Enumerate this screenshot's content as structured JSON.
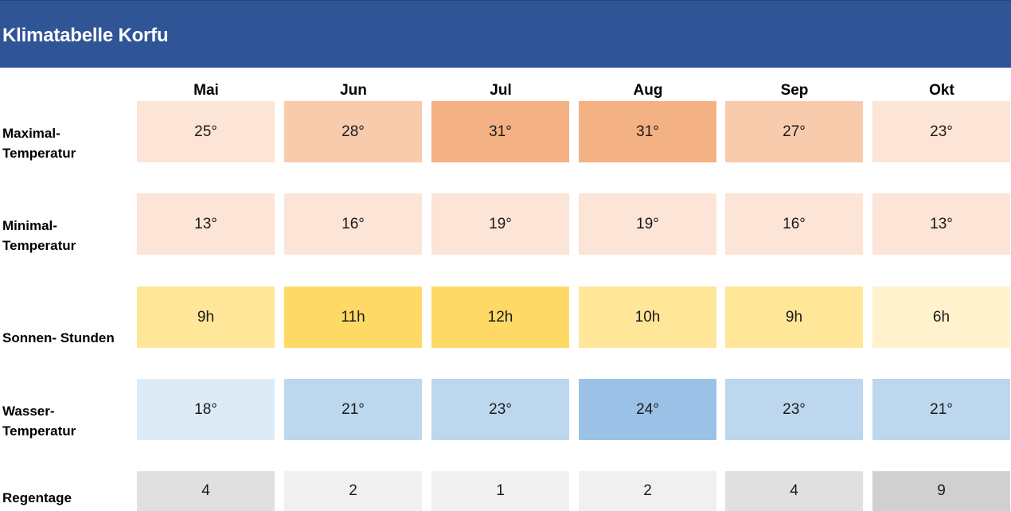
{
  "title": "Klimatabelle Korfu",
  "months": [
    "Mai",
    "Jun",
    "Jul",
    "Aug",
    "Sep",
    "Okt"
  ],
  "rows": [
    {
      "key": "maxtemp",
      "label_line1": "Maximal-",
      "label_line2": "Temperatur",
      "values": [
        "25°",
        "28°",
        "31°",
        "31°",
        "27°",
        "23°"
      ],
      "colors": [
        "#FCE4D6",
        "#F8CBAD",
        "#F4B183",
        "#F4B183",
        "#F8CBAD",
        "#FCE4D6"
      ]
    },
    {
      "key": "mintemp",
      "label_line1": "Minimal-",
      "label_line2": "Temperatur",
      "values": [
        "13°",
        "16°",
        "19°",
        "19°",
        "16°",
        "13°"
      ],
      "colors": [
        "#FCE4D6",
        "#FCE4D6",
        "#FCE4D6",
        "#FCE4D6",
        "#FCE4D6",
        "#FCE4D6"
      ]
    },
    {
      "key": "sun",
      "label_line1": "",
      "label_line2": "Sonnen- Stunden",
      "values": [
        "9h",
        "11h",
        "12h",
        "10h",
        "9h",
        "6h"
      ],
      "colors": [
        "#FFE699",
        "#FFD966",
        "#FFD966",
        "#FFE699",
        "#FFE699",
        "#FFF2CC"
      ]
    },
    {
      "key": "water",
      "label_line1": "Wasser-",
      "label_line2": "Temperatur",
      "values": [
        "18°",
        "21°",
        "23°",
        "24°",
        "23°",
        "21°"
      ],
      "colors": [
        "#DDEBF7",
        "#BDD7EE",
        "#BDD7EE",
        "#9BC2E6",
        "#BDD7EE",
        "#BDD7EE"
      ]
    },
    {
      "key": "rain",
      "label_line1": "",
      "label_line2": "Regentage",
      "values": [
        "4",
        "2",
        "1",
        "2",
        "4",
        "9"
      ],
      "colors": [
        "#E0E0E0",
        "#F0F0F0",
        "#F0F0F0",
        "#F0F0F0",
        "#E0E0E0",
        "#D0D0D0"
      ]
    }
  ]
}
